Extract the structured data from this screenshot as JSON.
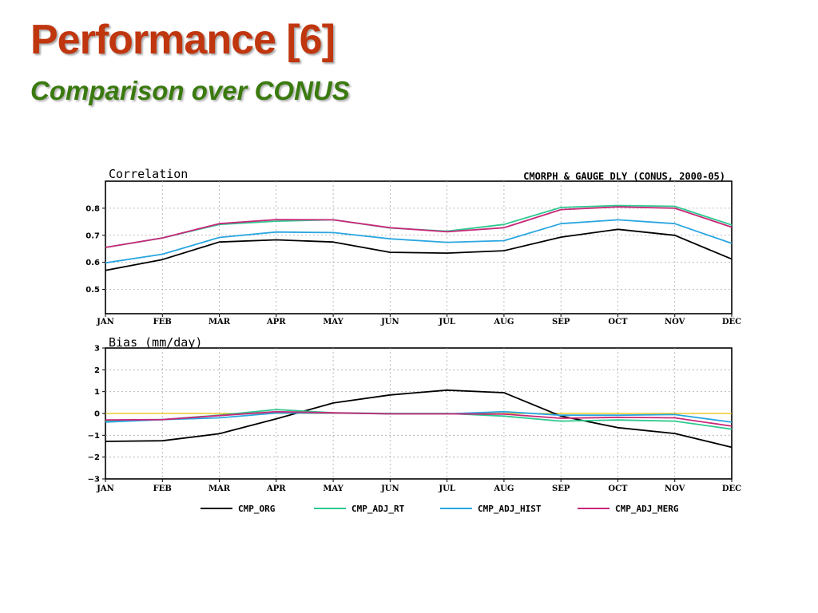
{
  "slide": {
    "title": "Performance [6]",
    "subtitle": "Comparison over CONUS",
    "title_color": "#c0360f",
    "subtitle_color": "#3a7a0f"
  },
  "chart_data": [
    {
      "type": "line",
      "title": "Correlation",
      "header": "CMORPH & GAUGE DLY (CONUS, 2000-05)",
      "categories": [
        "JAN",
        "FEB",
        "MAR",
        "APR",
        "MAY",
        "JUN",
        "JUL",
        "AUG",
        "SEP",
        "OCT",
        "NOV",
        "DEC"
      ],
      "ylim": [
        0.41,
        0.9
      ],
      "yticks": [
        {
          "value": 0.5,
          "label": "0.5"
        },
        {
          "value": 0.6,
          "label": "0.6"
        },
        {
          "value": 0.7,
          "label": "0.7"
        },
        {
          "value": 0.8,
          "label": "0.8"
        }
      ],
      "grid": true,
      "series": [
        {
          "name": "CMP_ORG",
          "color": "#000000",
          "values": [
            0.57,
            0.61,
            0.675,
            0.683,
            0.675,
            0.637,
            0.634,
            0.643,
            0.693,
            0.722,
            0.7,
            0.612
          ]
        },
        {
          "name": "CMP_ADJ_RT",
          "color": "#2ec98f",
          "values": [
            0.655,
            0.69,
            0.74,
            0.752,
            0.757,
            0.727,
            0.715,
            0.74,
            0.803,
            0.81,
            0.807,
            0.738
          ]
        },
        {
          "name": "CMP_ADJ_HIST",
          "color": "#2aa6e0",
          "values": [
            0.598,
            0.63,
            0.692,
            0.712,
            0.71,
            0.687,
            0.674,
            0.68,
            0.743,
            0.757,
            0.743,
            0.67
          ]
        },
        {
          "name": "CMP_ADJ_MERG",
          "color": "#c8287a",
          "values": [
            0.655,
            0.69,
            0.743,
            0.758,
            0.757,
            0.728,
            0.713,
            0.728,
            0.795,
            0.805,
            0.8,
            0.73
          ]
        }
      ]
    },
    {
      "type": "line",
      "title": "Bias (mm/day)",
      "categories": [
        "JAN",
        "FEB",
        "MAR",
        "APR",
        "MAY",
        "JUN",
        "JUL",
        "AUG",
        "SEP",
        "OCT",
        "NOV",
        "DEC"
      ],
      "ylim": [
        -3,
        3
      ],
      "yticks": [
        {
          "value": 3,
          "label": "3"
        },
        {
          "value": 2,
          "label": "2"
        },
        {
          "value": 1,
          "label": "1"
        },
        {
          "value": 0,
          "label": "0"
        },
        {
          "value": -1,
          "label": "−1"
        },
        {
          "value": -2,
          "label": "−2"
        },
        {
          "value": -3,
          "label": "−3"
        }
      ],
      "grid": true,
      "zero_line_color": "#e6c200",
      "series": [
        {
          "name": "CMP_ORG",
          "color": "#000000",
          "values": [
            -1.28,
            -1.25,
            -0.93,
            -0.25,
            0.48,
            0.85,
            1.07,
            0.95,
            -0.12,
            -0.65,
            -0.92,
            -1.55
          ]
        },
        {
          "name": "CMP_ADJ_RT",
          "color": "#2ec98f",
          "values": [
            -0.35,
            -0.28,
            -0.08,
            0.18,
            0.03,
            0.0,
            0.0,
            -0.12,
            -0.35,
            -0.3,
            -0.35,
            -0.72
          ]
        },
        {
          "name": "CMP_ADJ_HIST",
          "color": "#2aa6e0",
          "values": [
            -0.4,
            -0.28,
            -0.2,
            0.02,
            0.02,
            -0.02,
            -0.02,
            0.08,
            -0.08,
            -0.08,
            -0.05,
            -0.4
          ]
        },
        {
          "name": "CMP_ADJ_MERG",
          "color": "#c8287a",
          "values": [
            -0.3,
            -0.28,
            -0.1,
            0.08,
            0.03,
            -0.02,
            -0.02,
            -0.03,
            -0.22,
            -0.18,
            -0.2,
            -0.58
          ]
        }
      ]
    }
  ]
}
